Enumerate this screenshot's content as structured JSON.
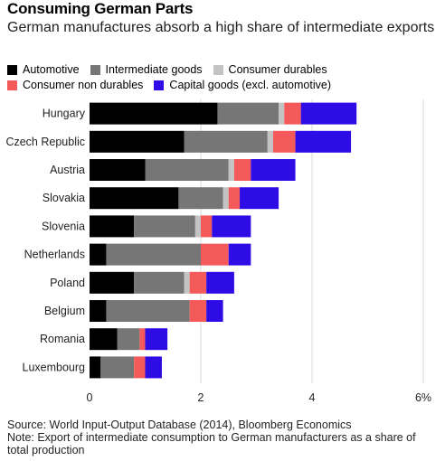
{
  "header": {
    "title": "Consuming German Parts",
    "subtitle": "German manufactures absorb a high share of intermediate exports"
  },
  "legend": {
    "rows": [
      [
        {
          "label": "Automotive",
          "color": "#000000"
        },
        {
          "label": "Intermediate goods",
          "color": "#767676"
        },
        {
          "label": "Consumer durables",
          "color": "#c3c3c3"
        }
      ],
      [
        {
          "label": "Consumer non durables",
          "color": "#f45a5a"
        },
        {
          "label": "Capital goods (excl. automotive)",
          "color": "#2e0ce6"
        }
      ]
    ]
  },
  "footer": {
    "source": "Source: World Input-Output Database (2014), Bloomberg Economics",
    "note": "Note: Export of intermediate consumption to German manufacturers as a share of total production"
  },
  "chart_data": {
    "type": "bar",
    "orientation": "horizontal",
    "stacked": true,
    "title": "Consuming German Parts",
    "subtitle": "German manufactures absorb a high share of intermediate exports",
    "categories": [
      "Hungary",
      "Czech Republic",
      "Austria",
      "Slovakia",
      "Slovenia",
      "Netherlands",
      "Poland",
      "Belgium",
      "Romania",
      "Luxembourg"
    ],
    "series": [
      {
        "name": "Automotive",
        "color": "#000000",
        "values": [
          2.3,
          1.7,
          1.0,
          1.6,
          0.8,
          0.3,
          0.8,
          0.3,
          0.5,
          0.2
        ]
      },
      {
        "name": "Intermediate goods",
        "color": "#767676",
        "values": [
          1.1,
          1.5,
          1.5,
          0.8,
          1.1,
          1.7,
          0.9,
          1.5,
          0.4,
          0.6
        ]
      },
      {
        "name": "Consumer durables",
        "color": "#c3c3c3",
        "values": [
          0.1,
          0.1,
          0.1,
          0.1,
          0.1,
          0.0,
          0.1,
          0.0,
          0.0,
          0.0
        ]
      },
      {
        "name": "Consumer non durables",
        "color": "#f45a5a",
        "values": [
          0.3,
          0.4,
          0.3,
          0.2,
          0.2,
          0.5,
          0.3,
          0.3,
          0.1,
          0.2
        ]
      },
      {
        "name": "Capital goods (excl. automotive)",
        "color": "#2e0ce6",
        "values": [
          1.0,
          1.0,
          0.8,
          0.7,
          0.7,
          0.4,
          0.5,
          0.3,
          0.4,
          0.3
        ]
      }
    ],
    "xlim": [
      0,
      6
    ],
    "xticks": [
      "0",
      "2",
      "4",
      "6%"
    ],
    "xtick_values": [
      0,
      2,
      4,
      6
    ],
    "grid": "vertical",
    "legend_position": "top"
  }
}
